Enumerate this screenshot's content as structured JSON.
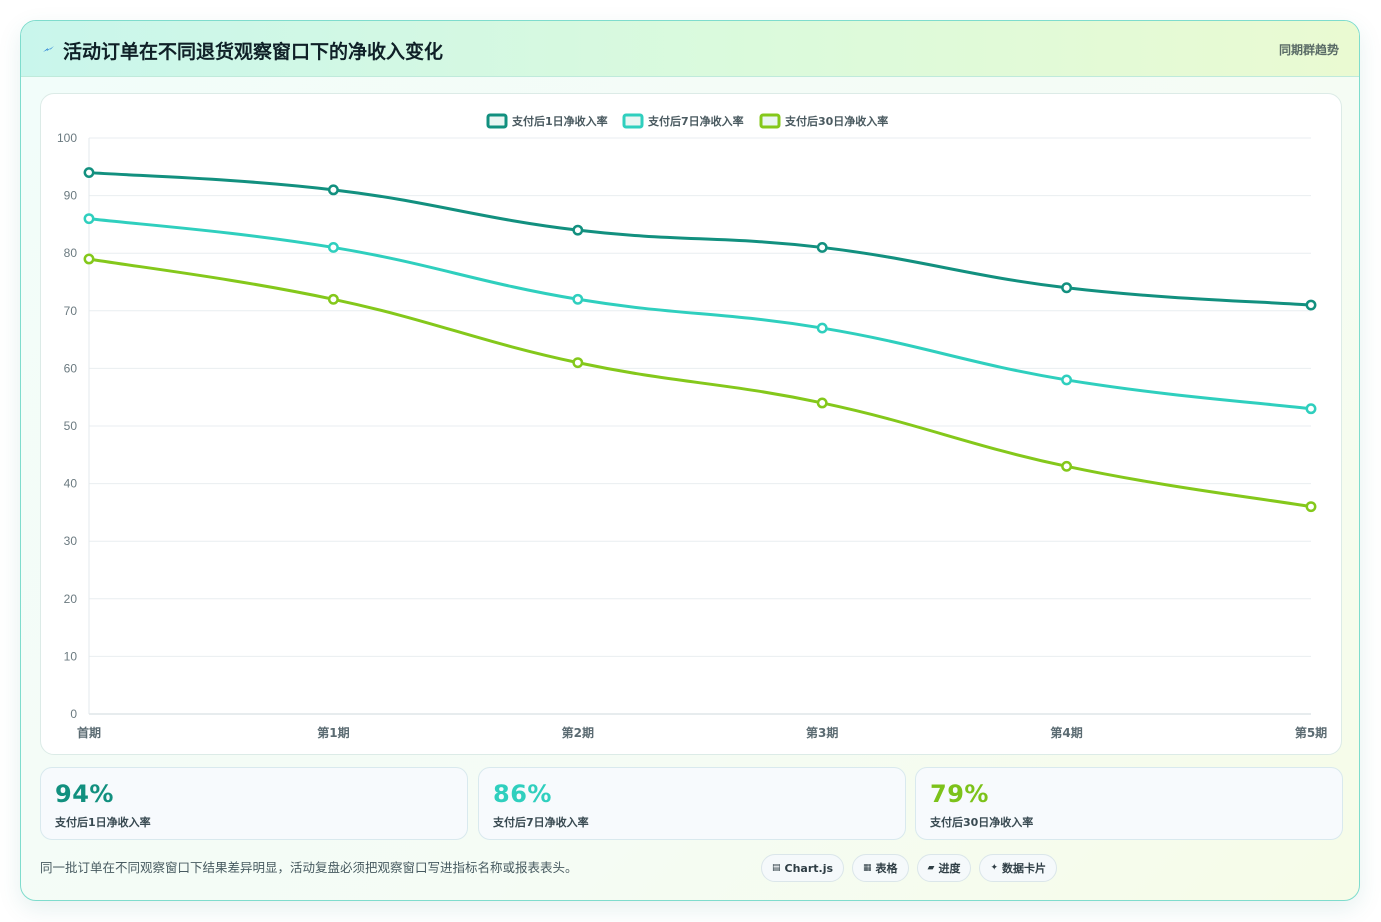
{
  "header": {
    "title": "活动订单在不同退货观察窗口下的净收入变化",
    "tag": "同期群趋势"
  },
  "chart_data": {
    "type": "line",
    "categories": [
      "首期",
      "第1期",
      "第2期",
      "第3期",
      "第4期",
      "第5期"
    ],
    "series": [
      {
        "name": "支付后1日净收入率",
        "color": "#12907f",
        "values": [
          94,
          91,
          84,
          81,
          74,
          71
        ]
      },
      {
        "name": "支付后7日净收入率",
        "color": "#2fcfbe",
        "values": [
          86,
          81,
          72,
          67,
          58,
          53
        ]
      },
      {
        "name": "支付后30日净收入率",
        "color": "#84c81b",
        "values": [
          79,
          72,
          61,
          54,
          43,
          36
        ]
      }
    ],
    "ylim": [
      0,
      100
    ],
    "yticks": [
      0,
      10,
      20,
      30,
      40,
      50,
      60,
      70,
      80,
      90,
      100
    ],
    "grid": true,
    "legend": "top-center"
  },
  "kpis": [
    {
      "value": "94%",
      "label": "支付后1日净收入率",
      "color": "#12907f"
    },
    {
      "value": "86%",
      "label": "支付后7日净收入率",
      "color": "#2fcfbe"
    },
    {
      "value": "79%",
      "label": "支付后30日净收入率",
      "color": "#7cc21a"
    }
  ],
  "footnote": "同一批订单在不同观察窗口下结果差异明显，活动复盘必须把观察窗口写进指标名称或报表表头。",
  "chips": [
    {
      "icon": "chart-icon",
      "glyph": "▤",
      "label": "Chart.js"
    },
    {
      "icon": "table-icon",
      "glyph": "▦",
      "label": "表格"
    },
    {
      "icon": "progress-icon",
      "glyph": "▰",
      "label": "进度"
    },
    {
      "icon": "card-icon",
      "glyph": "✦",
      "label": "数据卡片"
    }
  ]
}
